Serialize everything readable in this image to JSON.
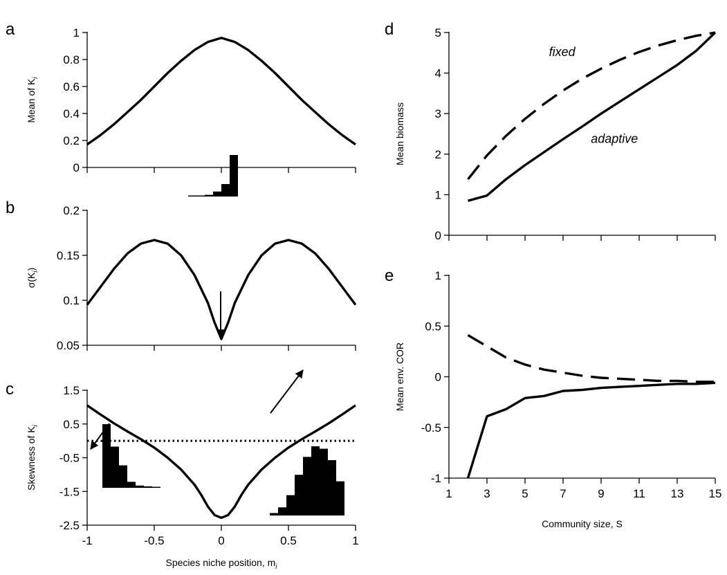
{
  "chart_data": [
    {
      "panel": "a",
      "type": "line",
      "xlabel": "",
      "ylabel": "Mean of K",
      "ylabel_sub": "i",
      "xlim": [
        -1,
        1
      ],
      "ylim": [
        0,
        1
      ],
      "xticks": [
        -1,
        -0.5,
        0,
        0.5,
        1
      ],
      "yticks": [
        "0",
        "0.2",
        "0.4",
        "0.6",
        "0.8",
        "1"
      ],
      "series": [
        {
          "style": "solid",
          "x": [
            -1,
            -0.9,
            -0.8,
            -0.7,
            -0.6,
            -0.5,
            -0.4,
            -0.3,
            -0.2,
            -0.1,
            0,
            0.1,
            0.2,
            0.3,
            0.4,
            0.5,
            0.6,
            0.7,
            0.8,
            0.9,
            1
          ],
          "y": [
            0.17,
            0.24,
            0.32,
            0.41,
            0.5,
            0.6,
            0.7,
            0.79,
            0.87,
            0.93,
            0.96,
            0.93,
            0.87,
            0.79,
            0.7,
            0.6,
            0.5,
            0.41,
            0.32,
            0.24,
            0.17
          ]
        }
      ]
    },
    {
      "panel": "b",
      "type": "line",
      "xlabel": "",
      "ylabel": "σ(K",
      "ylabel_sub": "i",
      "ylabel_end": ")",
      "xlim": [
        -1,
        1
      ],
      "ylim": [
        0.05,
        0.2
      ],
      "xticks": [
        -1,
        -0.5,
        0,
        0.5,
        1
      ],
      "yticks": [
        "0.05",
        "0.1",
        "0.15",
        "0.2"
      ],
      "series": [
        {
          "style": "solid",
          "x": [
            -1,
            -0.9,
            -0.8,
            -0.7,
            -0.6,
            -0.5,
            -0.4,
            -0.3,
            -0.2,
            -0.1,
            -0.05,
            0,
            0.05,
            0.1,
            0.2,
            0.3,
            0.4,
            0.5,
            0.6,
            0.7,
            0.8,
            0.9,
            1
          ],
          "y": [
            0.095,
            0.115,
            0.135,
            0.152,
            0.163,
            0.167,
            0.163,
            0.15,
            0.128,
            0.097,
            0.075,
            0.057,
            0.075,
            0.097,
            0.128,
            0.15,
            0.163,
            0.167,
            0.163,
            0.152,
            0.135,
            0.115,
            0.095
          ]
        }
      ]
    },
    {
      "panel": "c",
      "type": "line",
      "xlabel": "Species niche position, m",
      "xlabel_sub": "i",
      "ylabel": "Skewness of K",
      "ylabel_sub": "i",
      "xlim": [
        -1,
        1
      ],
      "ylim": [
        -2.5,
        1.5
      ],
      "xticks": [
        "-1",
        "-0.5",
        "0",
        "0.5",
        "1"
      ],
      "yticks": [
        "-2.5",
        "-1.5",
        "-0.5",
        "0.5",
        "1.5"
      ],
      "reference_line": {
        "y": 0,
        "style": "dotted"
      },
      "series": [
        {
          "style": "solid",
          "x": [
            -1,
            -0.9,
            -0.8,
            -0.7,
            -0.6,
            -0.5,
            -0.4,
            -0.3,
            -0.2,
            -0.15,
            -0.1,
            -0.05,
            0,
            0.05,
            0.1,
            0.15,
            0.2,
            0.3,
            0.4,
            0.5,
            0.6,
            0.7,
            0.8,
            0.9,
            1
          ],
          "y": [
            1.05,
            0.78,
            0.52,
            0.28,
            0.05,
            -0.2,
            -0.5,
            -0.85,
            -1.3,
            -1.6,
            -1.95,
            -2.2,
            -2.28,
            -2.2,
            -1.95,
            -1.6,
            -1.3,
            -0.85,
            -0.5,
            -0.2,
            0.05,
            0.28,
            0.52,
            0.78,
            1.05
          ]
        }
      ],
      "inset_histograms": [
        {
          "name": "left",
          "values": [
            0.85,
            0.55,
            0.3,
            0.08,
            0.03,
            0.02,
            0.01
          ],
          "arrow_target_x": -0.95
        },
        {
          "name": "middle",
          "values": [
            0.01,
            0.02,
            0.04,
            0.12,
            0.3,
            1.0
          ],
          "arrow_target_x": 0
        },
        {
          "name": "right",
          "values": [
            0.03,
            0.1,
            0.25,
            0.5,
            0.72,
            0.85,
            0.82,
            0.68,
            0.42
          ],
          "arrow_target_x": 0.55
        }
      ]
    },
    {
      "panel": "d",
      "type": "line",
      "xlabel": "",
      "ylabel": "Mean biomass",
      "xlim": [
        1,
        15
      ],
      "ylim": [
        0,
        5
      ],
      "xticks": [
        1,
        3,
        5,
        7,
        9,
        11,
        13,
        15
      ],
      "yticks": [
        "0",
        "1",
        "2",
        "3",
        "4",
        "5"
      ],
      "annotations": [
        {
          "text": "fixed",
          "x": 6.95,
          "y": 4.52
        },
        {
          "text": "adaptive",
          "x": 9.7,
          "y": 2.38
        }
      ],
      "series": [
        {
          "name": "fixed",
          "style": "dashed",
          "x": [
            2,
            3,
            4,
            5,
            6,
            7,
            8,
            9,
            10,
            11,
            12,
            13,
            14,
            15
          ],
          "y": [
            1.38,
            1.97,
            2.45,
            2.87,
            3.24,
            3.57,
            3.86,
            4.11,
            4.33,
            4.52,
            4.68,
            4.81,
            4.92,
            5.0
          ]
        },
        {
          "name": "adaptive",
          "style": "solid",
          "x": [
            2,
            3,
            4,
            5,
            6,
            7,
            8,
            9,
            10,
            11,
            12,
            13,
            14,
            15
          ],
          "y": [
            0.85,
            0.98,
            1.38,
            1.73,
            2.05,
            2.37,
            2.68,
            3.0,
            3.3,
            3.6,
            3.9,
            4.2,
            4.55,
            5.0
          ]
        }
      ]
    },
    {
      "panel": "e",
      "type": "line",
      "xlabel": "Community size, S",
      "ylabel": "Mean env. COR",
      "xlim": [
        1,
        15
      ],
      "ylim": [
        -1,
        1
      ],
      "xticks": [
        "1",
        "3",
        "5",
        "7",
        "9",
        "11",
        "13",
        "15"
      ],
      "yticks": [
        "-1",
        "-0.5",
        "0",
        "0.5",
        "1"
      ],
      "series": [
        {
          "name": "fixed",
          "style": "dashed",
          "x": [
            2,
            3,
            4,
            5,
            6,
            7,
            8,
            9,
            10,
            11,
            12,
            13,
            14,
            15
          ],
          "y": [
            0.41,
            0.3,
            0.19,
            0.12,
            0.07,
            0.04,
            0.01,
            -0.01,
            -0.02,
            -0.03,
            -0.04,
            -0.04,
            -0.05,
            -0.05
          ]
        },
        {
          "name": "adaptive",
          "style": "solid",
          "x": [
            2,
            3,
            4,
            5,
            6,
            7,
            8,
            9,
            10,
            11,
            12,
            13,
            14,
            15
          ],
          "y": [
            -1.0,
            -0.39,
            -0.32,
            -0.21,
            -0.19,
            -0.14,
            -0.13,
            -0.11,
            -0.1,
            -0.09,
            -0.08,
            -0.07,
            -0.07,
            -0.06
          ]
        }
      ]
    }
  ]
}
